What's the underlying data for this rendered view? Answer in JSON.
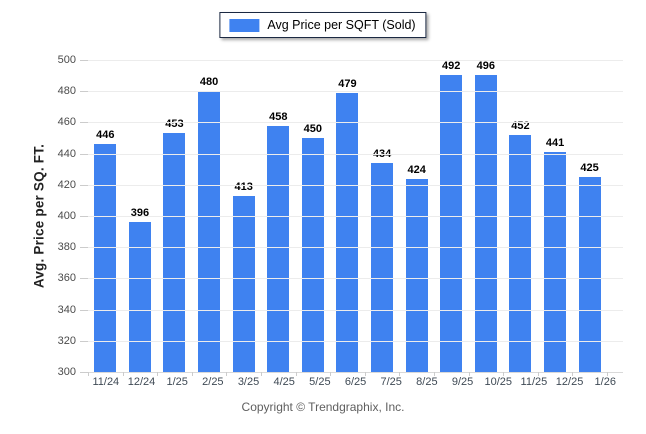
{
  "legend": {
    "label": "Avg Price per SQFT (Sold)"
  },
  "y_axis": {
    "title": "Avg. Price per SQ. FT."
  },
  "footer": {
    "text": "Copyright © Trendgraphix, Inc."
  },
  "colors": {
    "bar": "#3F82F0",
    "grid": "#ececec",
    "axis_line": "#d9d9d9",
    "tick": "#cccccc",
    "y_tick_label": "#4b4b4b",
    "x_tick_label": "#3f4a55",
    "value_label": "#000000",
    "legend_border": "#1b2942",
    "footer_text": "#5f5f5f"
  },
  "chart_data": {
    "type": "bar",
    "title": "Avg Price per SQFT (Sold)",
    "categories": [
      "11/24",
      "12/24",
      "1/25",
      "2/25",
      "3/25",
      "4/25",
      "5/25",
      "6/25",
      "7/25",
      "8/25",
      "9/25",
      "10/25",
      "11/25",
      "12/25",
      "1/26"
    ],
    "values": [
      446,
      396,
      453,
      480,
      413,
      458,
      450,
      479,
      434,
      424,
      492,
      496,
      452,
      441,
      425
    ],
    "xlabel": "",
    "ylabel": "Avg. Price per SQ. FT.",
    "ylim": [
      300,
      500
    ],
    "ytick_step": 20,
    "grid": true,
    "legend_position": "top-center",
    "value_labels": true
  }
}
